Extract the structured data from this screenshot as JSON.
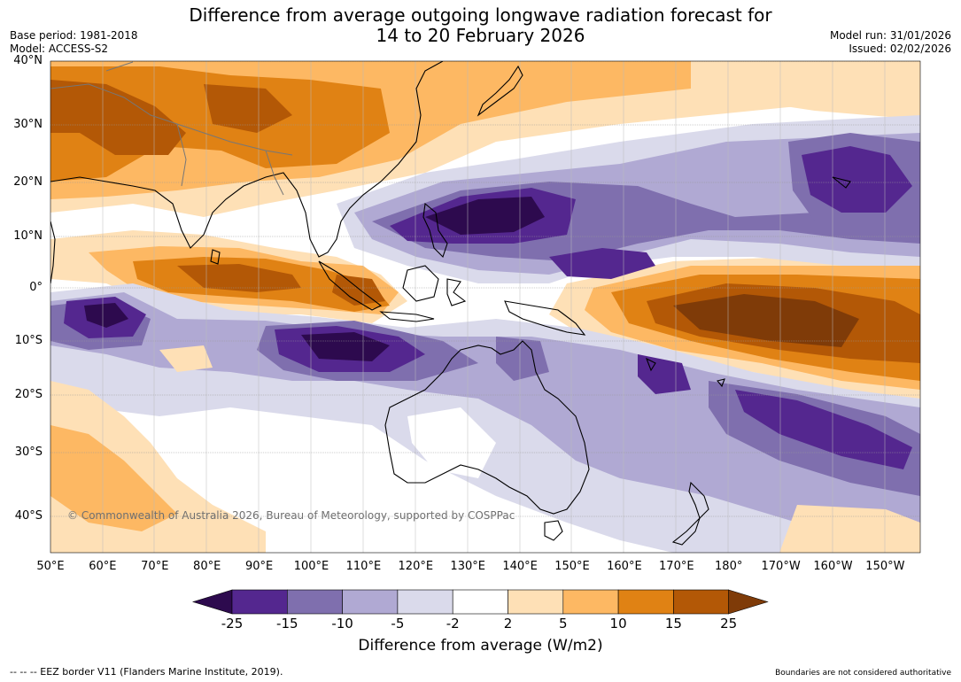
{
  "title": {
    "line1": "Difference from average outgoing longwave radiation forecast for",
    "line2": "14 to 20 February 2026"
  },
  "meta_left": {
    "base_period": "Base period: 1981-2018",
    "model": "Model: ACCESS-S2"
  },
  "meta_right": {
    "model_run": "Model run: 31/01/2026",
    "issued": "Issued: 02/02/2026"
  },
  "latitude_labels": [
    "40°N",
    "30°N",
    "20°N",
    "10°N",
    "0°",
    "10°S",
    "20°S",
    "30°S",
    "40°S"
  ],
  "longitude_labels": [
    "50°E",
    "60°E",
    "70°E",
    "80°E",
    "90°E",
    "100°E",
    "110°E",
    "120°E",
    "130°E",
    "140°E",
    "150°E",
    "160°E",
    "170°E",
    "180°",
    "170°W",
    "160°W",
    "150°W"
  ],
  "colorbar": {
    "ticks": [
      "-25",
      "-15",
      "-10",
      "-5",
      "-2",
      "2",
      "5",
      "10",
      "15",
      "25"
    ],
    "colors": [
      "#2d0a4e",
      "#54278f",
      "#7f6fae",
      "#b0a9d3",
      "#dadaeb",
      "#ffffff",
      "#fee0b6",
      "#fdb863",
      "#e08214",
      "#b35806",
      "#7f3b08"
    ],
    "label": "Difference from average (W/m2)"
  },
  "copyright": "© Commonwealth of Australia 2026, Bureau of Meteorology, supported by COSPPac",
  "footer_left": "--  --  -- EEZ border V11 (Flanders Marine Institute, 2019).",
  "footer_right": "Boundaries are not considered authoritative"
}
